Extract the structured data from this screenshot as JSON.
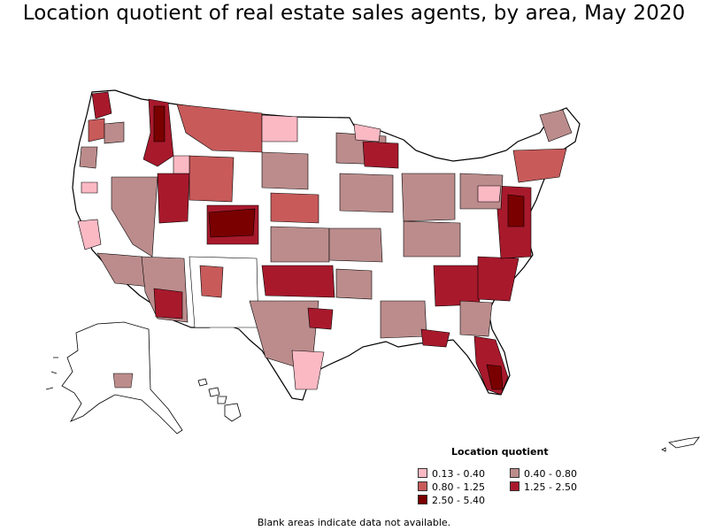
{
  "title": "Location quotient of real estate sales agents, by area, May 2020",
  "legend": {
    "title": "Location quotient",
    "items": [
      {
        "label": "0.13 - 0.40",
        "color": "#fbb9c4"
      },
      {
        "label": "0.40 - 0.80",
        "color": "#bc8c8c"
      },
      {
        "label": "0.80 - 1.25",
        "color": "#c85a5a"
      },
      {
        "label": "1.25 - 2.50",
        "color": "#a8192c"
      },
      {
        "label": "2.50 - 5.40",
        "color": "#7a0000"
      }
    ]
  },
  "note": "Blank areas indicate data not available.",
  "colors": {
    "outline": "#000000",
    "blank": "#ffffff"
  }
}
